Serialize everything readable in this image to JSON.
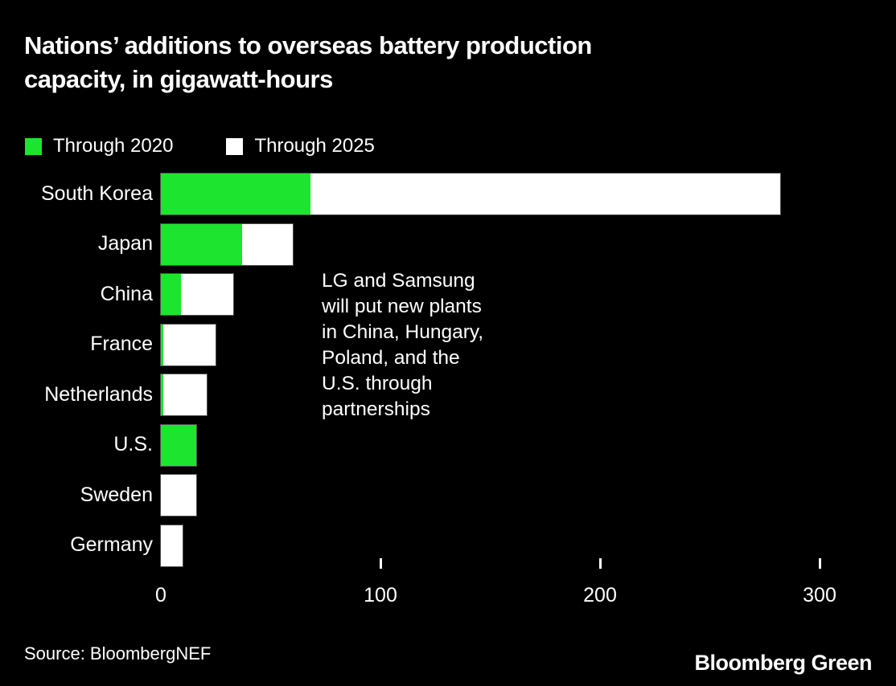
{
  "title": "Nations’ additions to overseas battery production capacity, in gigawatt-hours",
  "title_lines": {
    "0": "Nations’ additions to overseas battery production",
    "1": "capacity, in gigawatt-hours"
  },
  "colors": {
    "background": "#000000",
    "green": "#1DE52F",
    "white": "#FFFFFF"
  },
  "legend": {
    "items": [
      {
        "label": "Through 2020",
        "color": "#1DE52F"
      },
      {
        "label": "Through 2025",
        "color": "#FFFFFF"
      }
    ]
  },
  "chart_data": {
    "type": "bar",
    "orientation": "horizontal",
    "unit": "gigawatt-hours",
    "title": "Nations’ additions to overseas battery production capacity, in gigawatt-hours",
    "categories": [
      "South Korea",
      "Japan",
      "China",
      "France",
      "Netherlands",
      "U.S.",
      "Sweden",
      "Germany"
    ],
    "series": [
      {
        "name": "Through 2020",
        "color": "#1DE52F",
        "values": [
          68,
          37,
          9,
          1,
          1,
          16,
          0,
          0
        ]
      },
      {
        "name": "Through 2025 (total)",
        "color": "#FFFFFF",
        "values": [
          282,
          60,
          33,
          25,
          21,
          16,
          16,
          10
        ]
      }
    ],
    "x_ticks": [
      0,
      100,
      200,
      300
    ],
    "xlim": [
      0,
      320
    ],
    "xlabel": "",
    "ylabel": "",
    "grid": false,
    "legend_position": "top-left",
    "annotation": "LG and Samsung will put new plants in China, Hungary, Poland, and the U.S. through partnerships"
  },
  "annotation_lines": {
    "0": "LG and Samsung",
    "1": "will put new plants",
    "2": "in China, Hungary,",
    "3": "Poland, and the",
    "4": "U.S. through",
    "5": "partnerships"
  },
  "source": "Source: BloombergNEF",
  "brand": "Bloomberg Green"
}
